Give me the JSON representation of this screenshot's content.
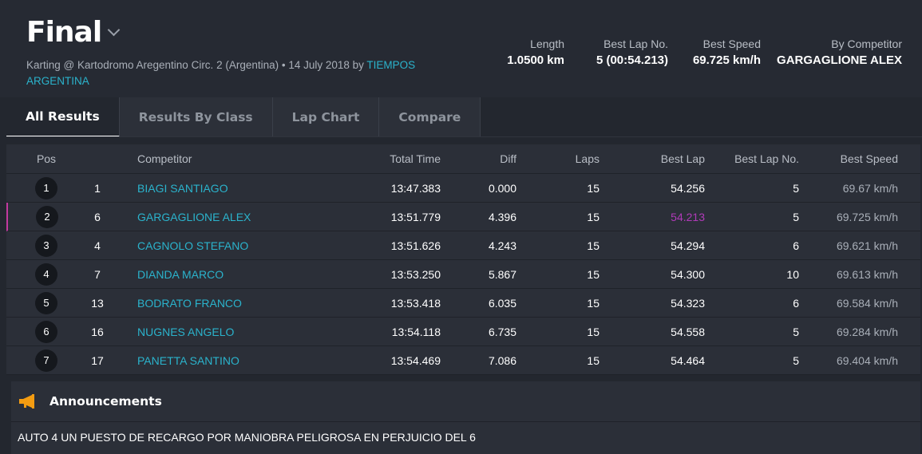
{
  "header": {
    "title": "Final",
    "subtitle_prefix": "Karting @ Kartodromo Aregentino Circ. 2 (Argentina) • 14 July 2018 by ",
    "organizer": "TIEMPOS ARGENTINA",
    "stats": [
      {
        "label": "Length",
        "value": "1.0500 km"
      },
      {
        "label": "Best Lap No.",
        "value": "5 (00:54.213)"
      },
      {
        "label": "Best Speed",
        "value": "69.725 km/h"
      },
      {
        "label": "By Competitor",
        "value": "GARGAGLIONE ALEX"
      }
    ]
  },
  "tabs": [
    "All Results",
    "Results By Class",
    "Lap Chart",
    "Compare"
  ],
  "table": {
    "columns": {
      "pos": "Pos",
      "competitor": "Competitor",
      "total": "Total Time",
      "diff": "Diff",
      "laps": "Laps",
      "best_lap": "Best Lap",
      "best_lap_no": "Best Lap No.",
      "best_speed": "Best Speed"
    },
    "rows": [
      {
        "pos": "1",
        "num": "1",
        "name": "BIAGI SANTIAGO",
        "total": "13:47.383",
        "diff": "0.000",
        "laps": "15",
        "best": "54.256",
        "best_no": "5",
        "speed": "69.67 km/h"
      },
      {
        "pos": "2",
        "num": "6",
        "name": "GARGAGLIONE ALEX",
        "total": "13:51.779",
        "diff": "4.396",
        "laps": "15",
        "best": "54.213",
        "best_no": "5",
        "speed": "69.725 km/h"
      },
      {
        "pos": "3",
        "num": "4",
        "name": "CAGNOLO STEFANO",
        "total": "13:51.626",
        "diff": "4.243",
        "laps": "15",
        "best": "54.294",
        "best_no": "6",
        "speed": "69.621 km/h"
      },
      {
        "pos": "4",
        "num": "7",
        "name": "DIANDA MARCO",
        "total": "13:53.250",
        "diff": "5.867",
        "laps": "15",
        "best": "54.300",
        "best_no": "10",
        "speed": "69.613 km/h"
      },
      {
        "pos": "5",
        "num": "13",
        "name": "BODRATO FRANCO",
        "total": "13:53.418",
        "diff": "6.035",
        "laps": "15",
        "best": "54.323",
        "best_no": "6",
        "speed": "69.584 km/h"
      },
      {
        "pos": "6",
        "num": "16",
        "name": "NUGNES ANGELO",
        "total": "13:54.118",
        "diff": "6.735",
        "laps": "15",
        "best": "54.558",
        "best_no": "5",
        "speed": "69.284 km/h"
      },
      {
        "pos": "7",
        "num": "17",
        "name": "PANETTA SANTINO",
        "total": "13:54.469",
        "diff": "7.086",
        "laps": "15",
        "best": "54.464",
        "best_no": "5",
        "speed": "69.404 km/h"
      }
    ]
  },
  "announcements": {
    "title": "Announcements",
    "icon": "megaphone-icon",
    "text": "AUTO 4 UN PUESTO DE RECARGO POR MANIOBRA PELIGROSA EN PERJUICIO DEL 6"
  },
  "colors": {
    "link": "#2bb3cc",
    "best_lap_highlight": "#b03ab8",
    "accent_megaphone": "#f39c12"
  }
}
